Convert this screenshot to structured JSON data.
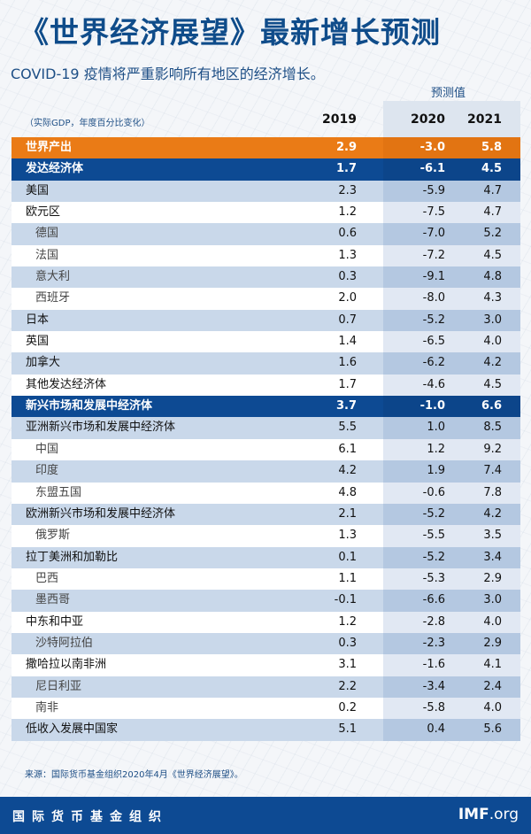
{
  "header": {
    "title": "《世界经济展望》最新增长预测",
    "subtitle": "COVID-19 疫情将严重影响所有地区的经济增长。",
    "projection_label": "预测值",
    "unit_note": "（实际GDP，年度百分比变化）",
    "years": [
      "2019",
      "2020",
      "2021"
    ]
  },
  "colors": {
    "orange": "#ea7b16",
    "blue": "#0d4a93",
    "title": "#0f4c8a",
    "stripe": "#c9d8ea"
  },
  "rows": [
    {
      "name": "世界产出",
      "v": [
        "2.9",
        "-3.0",
        "5.8"
      ],
      "style": "world"
    },
    {
      "name": "发达经济体",
      "v": [
        "1.7",
        "-6.1",
        "4.5"
      ],
      "style": "blue"
    },
    {
      "name": "美国",
      "v": [
        "2.3",
        "-5.9",
        "4.7"
      ],
      "style": "odd"
    },
    {
      "name": "欧元区",
      "v": [
        "1.2",
        "-7.5",
        "4.7"
      ],
      "style": "even"
    },
    {
      "name": "德国",
      "v": [
        "0.6",
        "-7.0",
        "5.2"
      ],
      "style": "odd",
      "sub": true
    },
    {
      "name": "法国",
      "v": [
        "1.3",
        "-7.2",
        "4.5"
      ],
      "style": "even",
      "sub": true
    },
    {
      "name": "意大利",
      "v": [
        "0.3",
        "-9.1",
        "4.8"
      ],
      "style": "odd",
      "sub": true
    },
    {
      "name": "西班牙",
      "v": [
        "2.0",
        "-8.0",
        "4.3"
      ],
      "style": "even",
      "sub": true
    },
    {
      "name": "日本",
      "v": [
        "0.7",
        "-5.2",
        "3.0"
      ],
      "style": "odd"
    },
    {
      "name": "英国",
      "v": [
        "1.4",
        "-6.5",
        "4.0"
      ],
      "style": "even"
    },
    {
      "name": "加拿大",
      "v": [
        "1.6",
        "-6.2",
        "4.2"
      ],
      "style": "odd"
    },
    {
      "name": "其他发达经济体",
      "v": [
        "1.7",
        "-4.6",
        "4.5"
      ],
      "style": "even"
    },
    {
      "name": "新兴市场和发展中经济体",
      "v": [
        "3.7",
        "-1.0",
        "6.6"
      ],
      "style": "blue"
    },
    {
      "name": "亚洲新兴市场和发展中经济体",
      "v": [
        "5.5",
        "1.0",
        "8.5"
      ],
      "style": "odd"
    },
    {
      "name": "中国",
      "v": [
        "6.1",
        "1.2",
        "9.2"
      ],
      "style": "even",
      "sub": true
    },
    {
      "name": "印度",
      "v": [
        "4.2",
        "1.9",
        "7.4"
      ],
      "style": "odd",
      "sub": true
    },
    {
      "name": "东盟五国",
      "v": [
        "4.8",
        "-0.6",
        "7.8"
      ],
      "style": "even",
      "sub": true
    },
    {
      "name": "欧洲新兴市场和发展中经济体",
      "v": [
        "2.1",
        "-5.2",
        "4.2"
      ],
      "style": "odd"
    },
    {
      "name": "俄罗斯",
      "v": [
        "1.3",
        "-5.5",
        "3.5"
      ],
      "style": "even",
      "sub": true
    },
    {
      "name": "拉丁美洲和加勒比",
      "v": [
        "0.1",
        "-5.2",
        "3.4"
      ],
      "style": "odd"
    },
    {
      "name": "巴西",
      "v": [
        "1.1",
        "-5.3",
        "2.9"
      ],
      "style": "even",
      "sub": true
    },
    {
      "name": "墨西哥",
      "v": [
        "-0.1",
        "-6.6",
        "3.0"
      ],
      "style": "odd",
      "sub": true
    },
    {
      "name": "中东和中亚",
      "v": [
        "1.2",
        "-2.8",
        "4.0"
      ],
      "style": "even"
    },
    {
      "name": "沙特阿拉伯",
      "v": [
        "0.3",
        "-2.3",
        "2.9"
      ],
      "style": "odd",
      "sub": true
    },
    {
      "name": "撒哈拉以南非洲",
      "v": [
        "3.1",
        "-1.6",
        "4.1"
      ],
      "style": "even"
    },
    {
      "name": "尼日利亚",
      "v": [
        "2.2",
        "-3.4",
        "2.4"
      ],
      "style": "odd",
      "sub": true
    },
    {
      "name": "南非",
      "v": [
        "0.2",
        "-5.8",
        "4.0"
      ],
      "style": "even",
      "sub": true
    },
    {
      "name": "低收入发展中国家",
      "v": [
        "5.1",
        "0.4",
        "5.6"
      ],
      "style": "odd"
    }
  ],
  "source": "来源：国际货币基金组织2020年4月《世界经济展望》。",
  "footer": {
    "org": "国际货币基金组织",
    "imf_bold": "IMF",
    "imf_rest": ".org"
  },
  "chart_data": {
    "type": "table",
    "title": "《世界经济展望》最新增长预测",
    "subtitle": "COVID-19 疫情将严重影响所有地区的经济增长。",
    "unit": "实际GDP，年度百分比变化",
    "columns": [
      "2019",
      "2020 (预测值)",
      "2021 (预测值)"
    ],
    "categories": [
      "世界产出",
      "发达经济体",
      "美国",
      "欧元区",
      "德国",
      "法国",
      "意大利",
      "西班牙",
      "日本",
      "英国",
      "加拿大",
      "其他发达经济体",
      "新兴市场和发展中经济体",
      "亚洲新兴市场和发展中经济体",
      "中国",
      "印度",
      "东盟五国",
      "欧洲新兴市场和发展中经济体",
      "俄罗斯",
      "拉丁美洲和加勒比",
      "巴西",
      "墨西哥",
      "中东和中亚",
      "沙特阿拉伯",
      "撒哈拉以南非洲",
      "尼日利亚",
      "南非",
      "低收入发展中国家"
    ],
    "series": [
      {
        "name": "2019",
        "values": [
          2.9,
          1.7,
          2.3,
          1.2,
          0.6,
          1.3,
          0.3,
          2.0,
          0.7,
          1.4,
          1.6,
          1.7,
          3.7,
          5.5,
          6.1,
          4.2,
          4.8,
          2.1,
          1.3,
          0.1,
          1.1,
          -0.1,
          1.2,
          0.3,
          3.1,
          2.2,
          0.2,
          5.1
        ]
      },
      {
        "name": "2020",
        "values": [
          -3.0,
          -6.1,
          -5.9,
          -7.5,
          -7.0,
          -7.2,
          -9.1,
          -8.0,
          -5.2,
          -6.5,
          -6.2,
          -4.6,
          -1.0,
          1.0,
          1.2,
          1.9,
          -0.6,
          -5.2,
          -5.5,
          -5.2,
          -5.3,
          -6.6,
          -2.8,
          -2.3,
          -1.6,
          -3.4,
          -5.8,
          0.4
        ]
      },
      {
        "name": "2021",
        "values": [
          5.8,
          4.5,
          4.7,
          4.7,
          5.2,
          4.5,
          4.8,
          4.3,
          3.0,
          4.0,
          4.2,
          4.5,
          6.6,
          8.5,
          9.2,
          7.4,
          7.8,
          4.2,
          3.5,
          3.4,
          2.9,
          3.0,
          4.0,
          2.9,
          4.1,
          2.4,
          4.0,
          5.6
        ]
      }
    ],
    "source": "国际货币基金组织2020年4月《世界经济展望》"
  }
}
